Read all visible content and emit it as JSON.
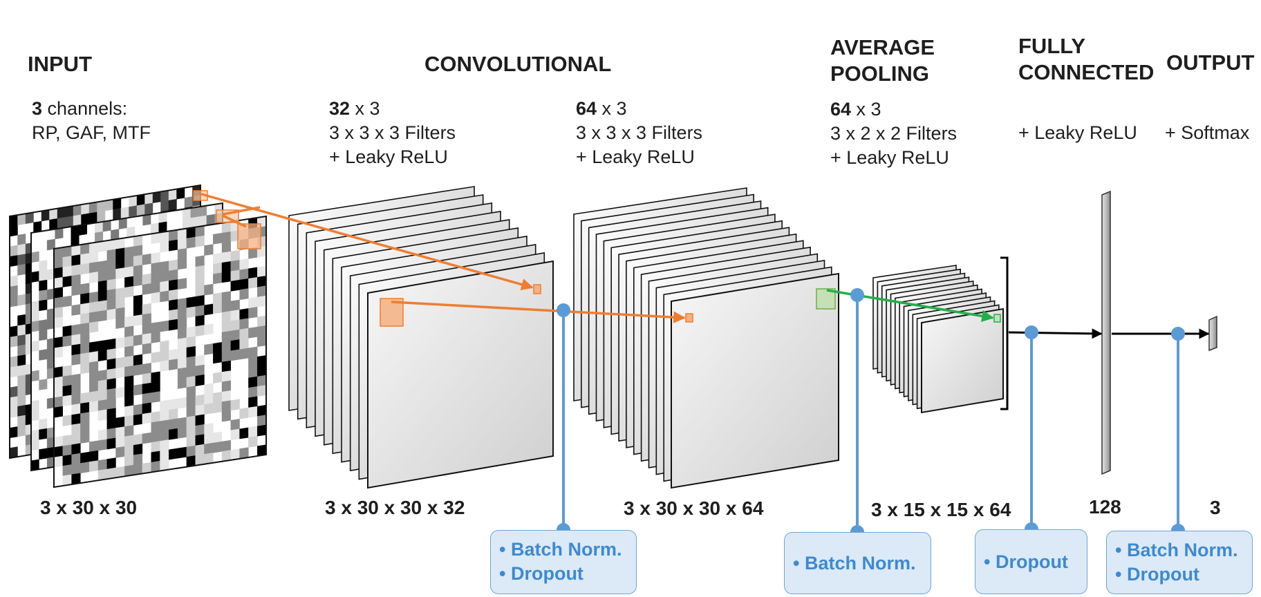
{
  "headers": {
    "input": "INPUT",
    "convolutional": "CONVOLUTIONAL",
    "pooling_1": "AVERAGE",
    "pooling_2": "POOLING",
    "fc_1": "FULLY",
    "fc_2": "CONNECTED",
    "output": "OUTPUT"
  },
  "input_desc": {
    "count": "3",
    "line1_rest": " channels:",
    "line2": "RP, GAF, MTF"
  },
  "conv1_desc": {
    "count": "32",
    "line1_rest": " x 3",
    "line2": "3 x 3 x 3 Filters",
    "line3": "+ Leaky ReLU"
  },
  "conv2_desc": {
    "count": "64",
    "line1_rest": " x 3",
    "line2": "3 x 3 x 3 Filters",
    "line3": "+ Leaky ReLU"
  },
  "pool_desc": {
    "count": "64",
    "line1_rest": " x 3",
    "line2": "3 x 2 x 2 Filters",
    "line3": "+ Leaky ReLU"
  },
  "fc_desc": "+ Leaky ReLU",
  "output_desc": "+ Softmax",
  "dims": {
    "input": "3 x 30 x 30",
    "conv1": "3 x 30 x 30 x 32",
    "conv2": "3 x 30 x 30 x 64",
    "pool": "3 x 15 x 15 x 64",
    "fc": "128",
    "output": "3"
  },
  "boxes": {
    "box1": [
      "• Batch Norm.",
      "• Dropout"
    ],
    "box2": [
      "• Batch Norm."
    ],
    "box3": [
      "• Dropout"
    ],
    "box4": [
      "• Batch Norm.",
      "• Dropout"
    ]
  },
  "colors": {
    "orange_arrow": "#ef7d31",
    "green_arrow": "#21b04b",
    "blue_connector": "#5b9bd5",
    "box_fill": "#dce9f6",
    "box_text": "#3d8ad0"
  }
}
